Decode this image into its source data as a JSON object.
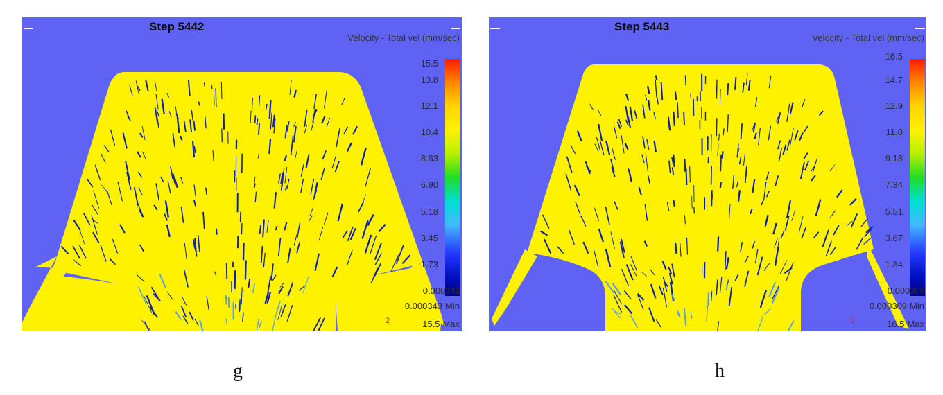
{
  "colors": {
    "background": "#5f63f4",
    "material": "#fff200",
    "vectors": "#1020a8",
    "vectors_light": "#5aa0e8"
  },
  "panels": [
    {
      "id": "g",
      "step_title": "Step 5442",
      "legend_title": "Velocity - Total vel (mm/sec)",
      "ticks": [
        "15.5",
        "13.8",
        "12.1",
        "10.4",
        "8.63",
        "6.90",
        "5.18",
        "3.45",
        "1.73",
        "0.000343"
      ],
      "min_value": "0.000343",
      "min_label": "Min",
      "max_value": "15.5",
      "max_label": "Max",
      "marker": "2",
      "caption": "g"
    },
    {
      "id": "h",
      "step_title": "Step 5443",
      "legend_title": "Velocity - Total vel (mm/sec)",
      "ticks": [
        "16.5",
        "14.7",
        "12.9",
        "11.0",
        "9.18",
        "7.34",
        "5.51",
        "3.67",
        "1.84",
        "0.000309"
      ],
      "min_value": "0.000309",
      "min_label": "Min",
      "max_value": "16.5",
      "max_label": "Max",
      "marker": "2",
      "caption": "h"
    }
  ]
}
